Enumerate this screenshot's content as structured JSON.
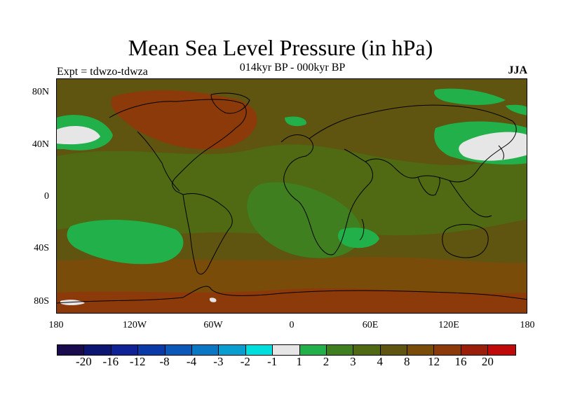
{
  "title": "Mean Sea Level Pressure (in hPa)",
  "subtitle": "014kyr BP - 000kyr BP",
  "left_label": "Expt = tdwzo-tdwza",
  "right_label": "JJA",
  "axes": {
    "y_ticks": [
      "80N",
      "40N",
      "0",
      "40S",
      "80S"
    ],
    "x_ticks": [
      "180",
      "120W",
      "60W",
      "0",
      "60E",
      "120E",
      "180"
    ]
  },
  "colorbar": {
    "colors": [
      "#1a0a4e",
      "#0d1572",
      "#0f2296",
      "#0a3aa8",
      "#0b58b8",
      "#0a77c4",
      "#0a9dd0",
      "#00dede",
      "#e6e6e6",
      "#22b04a",
      "#3f7f1f",
      "#4f6a12",
      "#5f5410",
      "#7a4c0a",
      "#8c3a0a",
      "#9a1e0a",
      "#c00a0a"
    ],
    "labels": [
      "-20",
      "-16",
      "-12",
      "-8",
      "-4",
      "-3",
      "-2",
      "-1",
      "1",
      "2",
      "3",
      "4",
      "8",
      "12",
      "16",
      "20"
    ]
  },
  "map": {
    "background_color": "#5f5410",
    "legend_colors": {
      "light": "#e6e6e6",
      "green": "#22b04a",
      "midgreen": "#3f7f1f",
      "olive": "#4f6a12",
      "brown": "#7a4c0a",
      "red": "#8c3a0a"
    }
  }
}
